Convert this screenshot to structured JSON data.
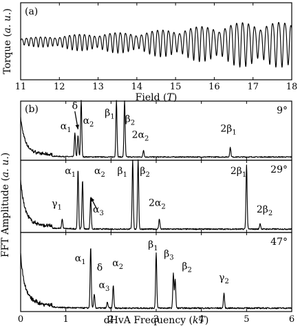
{
  "chart_data": [
    {
      "panel": "(a)",
      "type": "line",
      "xlabel": "Field (",
      "xlabel_unit": "T",
      "xlabel_close": ")",
      "ylabel": "Torque (",
      "ylabel_unit": "a. u.",
      "ylabel_close": ")",
      "xlim": [
        11,
        18
      ],
      "xticks": [
        "11",
        "12",
        "13",
        "14",
        "15",
        "16",
        "17",
        "18"
      ],
      "yticks": [],
      "series": [
        {
          "kind": "oscillation",
          "envelope_x": [
            11,
            12,
            13,
            14,
            15,
            16,
            17,
            18
          ],
          "envelope_amplitude": [
            0.12,
            0.22,
            0.32,
            0.35,
            0.5,
            0.62,
            0.78,
            0.72
          ],
          "dominant_period_T": [
            0.12,
            0.16
          ],
          "beat_period_T": 1.05
        }
      ]
    },
    {
      "panel": "(b)",
      "type": "line",
      "ylabel": "FFT Amplitude (",
      "ylabel_unit": "a. u.",
      "ylabel_close": ")",
      "xlabel": "dHvA Frequency (",
      "xlabel_unit": "kT",
      "xlabel_close": ")",
      "xlim": [
        0,
        6
      ],
      "xticks": [
        "0",
        "1",
        "2",
        "3",
        "4",
        "5",
        "6"
      ],
      "subplots": [
        {
          "angle": "9°",
          "peaks": [
            {
              "x": 1.2,
              "h": 0.42
            },
            {
              "x": 1.27,
              "h": 0.38
            },
            {
              "x": 1.34,
              "h": 1.0
            },
            {
              "x": 2.12,
              "h": 1.0
            },
            {
              "x": 2.3,
              "h": 1.0
            },
            {
              "x": 2.72,
              "h": 0.12
            },
            {
              "x": 4.64,
              "h": 0.17
            }
          ],
          "labels": [
            {
              "text": "α",
              "sub": "1",
              "x": 1.0,
              "y": 0.5
            },
            {
              "text": "δ",
              "sub": "",
              "x": 1.2,
              "y": 0.86
            },
            {
              "text": "α",
              "sub": "2",
              "x": 1.5,
              "y": 0.6
            },
            {
              "text": "β",
              "sub": "1",
              "x": 1.97,
              "y": 0.74
            },
            {
              "text": "β",
              "sub": "2",
              "x": 2.42,
              "y": 0.63
            },
            {
              "text": "2α",
              "sub": "2",
              "x": 2.65,
              "y": 0.35
            },
            {
              "text": "2β",
              "sub": "1",
              "x": 4.6,
              "y": 0.46
            }
          ]
        },
        {
          "angle": "29°",
          "peaks": [
            {
              "x": 0.92,
              "h": 0.14
            },
            {
              "x": 1.27,
              "h": 0.85
            },
            {
              "x": 1.37,
              "h": 0.7
            },
            {
              "x": 1.55,
              "h": 0.45
            },
            {
              "x": 2.48,
              "h": 1.0
            },
            {
              "x": 2.6,
              "h": 1.0
            },
            {
              "x": 3.07,
              "h": 0.15
            },
            {
              "x": 5.0,
              "h": 0.92
            },
            {
              "x": 5.3,
              "h": 0.08
            }
          ],
          "labels": [
            {
              "text": "α",
              "sub": "1",
              "x": 1.1,
              "y": 0.8
            },
            {
              "text": "α",
              "sub": "2",
              "x": 1.75,
              "y": 0.8
            },
            {
              "text": "γ",
              "sub": "1",
              "x": 0.8,
              "y": 0.33
            },
            {
              "text": "α",
              "sub": "3",
              "x": 1.72,
              "y": 0.25
            },
            {
              "text": "β",
              "sub": "1",
              "x": 2.25,
              "y": 0.8
            },
            {
              "text": "β",
              "sub": "2",
              "x": 2.75,
              "y": 0.8
            },
            {
              "text": "2α",
              "sub": "2",
              "x": 3.02,
              "y": 0.34
            },
            {
              "text": "2β",
              "sub": "1",
              "x": 4.82,
              "y": 0.8
            },
            {
              "text": "2β",
              "sub": "2",
              "x": 5.4,
              "y": 0.25
            }
          ]
        },
        {
          "angle": "47°",
          "peaks": [
            {
              "x": 1.55,
              "h": 0.8
            },
            {
              "x": 1.63,
              "h": 0.18
            },
            {
              "x": 1.92,
              "h": 0.08
            },
            {
              "x": 2.05,
              "h": 0.3
            },
            {
              "x": 3.0,
              "h": 0.72
            },
            {
              "x": 3.38,
              "h": 0.45
            },
            {
              "x": 3.42,
              "h": 0.38
            },
            {
              "x": 4.5,
              "h": 0.19
            }
          ],
          "labels": [
            {
              "text": "α",
              "sub": "1",
              "x": 1.32,
              "y": 0.62
            },
            {
              "text": "δ",
              "sub": "",
              "x": 1.75,
              "y": 0.5
            },
            {
              "text": "α",
              "sub": "3",
              "x": 1.85,
              "y": 0.27
            },
            {
              "text": "α",
              "sub": "2",
              "x": 2.15,
              "y": 0.56
            },
            {
              "text": "β",
              "sub": "1",
              "x": 2.93,
              "y": 0.8
            },
            {
              "text": "β",
              "sub": "3",
              "x": 3.28,
              "y": 0.68
            },
            {
              "text": "β",
              "sub": "2",
              "x": 3.68,
              "y": 0.52
            },
            {
              "text": "γ",
              "sub": "2",
              "x": 4.5,
              "y": 0.37
            }
          ]
        }
      ]
    }
  ]
}
